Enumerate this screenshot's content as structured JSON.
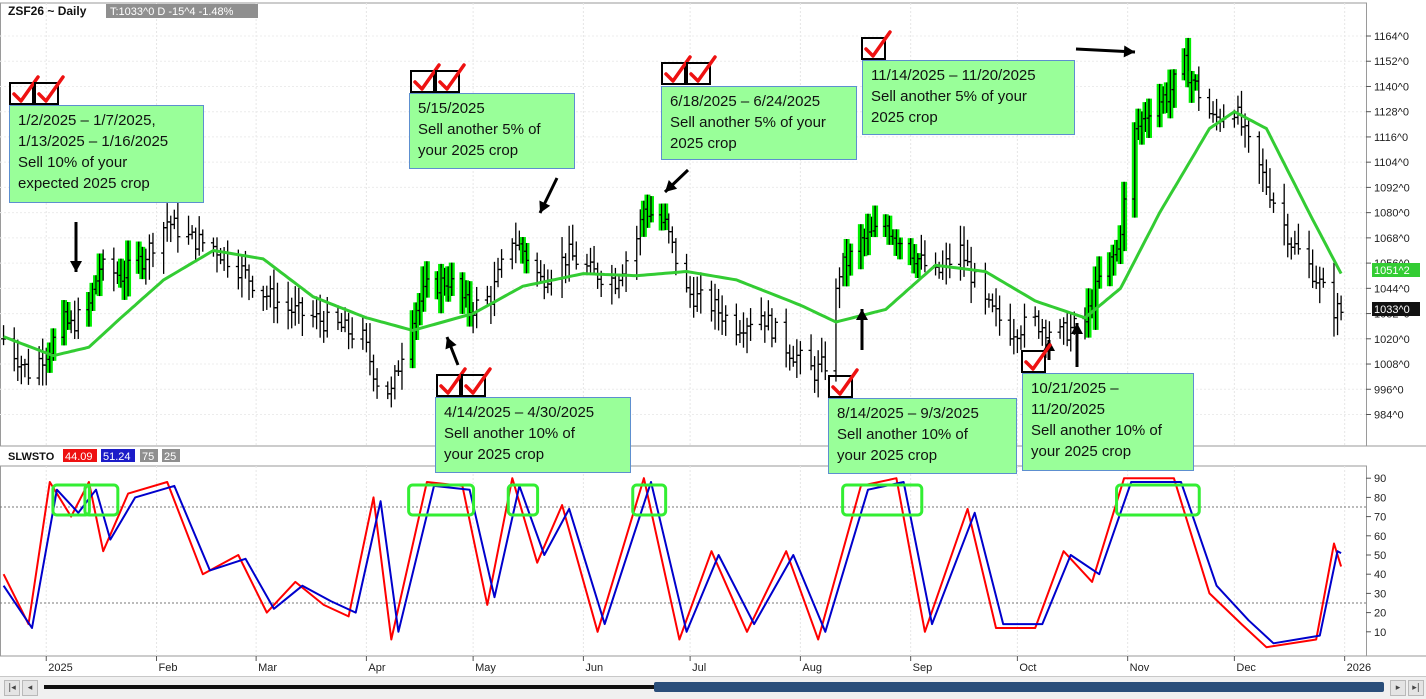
{
  "header": {
    "symbol": "ZSF26 ~ Daily",
    "stats": "T:1033^0 D  -15^4  -1.48%"
  },
  "indicator": {
    "name": "SLWSTO",
    "k_value": "44.09",
    "d_value": "51.24",
    "upper": "75",
    "lower": "25"
  },
  "price_axis_labels": [
    "1164^0",
    "1152^0",
    "1140^0",
    "1128^0",
    "1116^0",
    "1104^0",
    "1092^0",
    "1080^0",
    "1068^0",
    "1056^0",
    "1044^0",
    "1032^0",
    "1020^0",
    "1008^0",
    "996^0",
    "984^0"
  ],
  "osc_axis_labels": [
    "90",
    "80",
    "70",
    "60",
    "50",
    "40",
    "30",
    "20",
    "10"
  ],
  "last_price_tags": {
    "ma": "1051^2",
    "close": "1033^0"
  },
  "month_labels": [
    "2025",
    "Feb",
    "Mar",
    "Apr",
    "May",
    "Jun",
    "Jul",
    "Aug",
    "Sep",
    "Oct",
    "Nov",
    "Dec",
    "2026"
  ],
  "annotations": [
    {
      "lines": [
        "1/2/2025 –  1/7/2025,",
        "1/13/2025 – 1/16/2025",
        "Sell 10% of your",
        "expected 2025 crop"
      ],
      "checks": 2
    },
    {
      "lines": [
        "5/15/2025",
        "Sell another 5% of",
        "your 2025 crop"
      ],
      "checks": 2
    },
    {
      "lines": [
        "6/18/2025 – 6/24/2025",
        "Sell another 5% of your",
        "2025 crop"
      ],
      "checks": 2
    },
    {
      "lines": [
        "11/14/2025 – 11/20/2025",
        "Sell another 5% of your",
        "2025 crop"
      ],
      "checks": 1
    },
    {
      "lines": [
        "4/14/2025 – 4/30/2025",
        "Sell another 10% of",
        "your 2025 crop"
      ],
      "checks": 2
    },
    {
      "lines": [
        "8/14/2025 – 9/3/2025",
        "Sell another 10% of",
        "your 2025 crop"
      ],
      "checks": 1
    },
    {
      "lines": [
        "10/21/2025 –",
        "11/20/2025",
        "Sell another 10% of",
        "your 2025 crop"
      ],
      "checks": 1
    }
  ],
  "colors": {
    "moving_average": "#33cc33",
    "highlight": "#00ee00",
    "bars": "#000000",
    "stoch_k": "#ff0000",
    "stoch_d": "#0000cc",
    "callout_fill": "#99ff99",
    "check": "#ee1111"
  },
  "chart_data": [
    {
      "type": "line",
      "subtype": "daily price bars with moving average",
      "title": "ZSF26 ~ Daily",
      "x_range": [
        "2024-12-20",
        "2025-12-31"
      ],
      "ylim": [
        975,
        1172
      ],
      "y_ticks": [
        984,
        996,
        1008,
        1020,
        1032,
        1044,
        1056,
        1068,
        1080,
        1092,
        1104,
        1116,
        1128,
        1140,
        1152,
        1164
      ],
      "series": [
        {
          "name": "",
          "points": [
            [
              "2024-12-20",
              1020
            ],
            [
              "2024-12-27",
              1004
            ],
            [
              "2025-01-02",
              1016
            ],
            [
              "2025-01-06",
              1028
            ],
            [
              "2025-01-08",
              1026
            ],
            [
              "2025-01-13",
              1036
            ],
            [
              "2025-01-16",
              1054
            ],
            [
              "2025-01-22",
              1050
            ],
            [
              "2025-01-28",
              1058
            ],
            [
              "2025-02-04",
              1076
            ],
            [
              "2025-02-10",
              1068
            ],
            [
              "2025-02-17",
              1064
            ],
            [
              "2025-02-24",
              1054
            ],
            [
              "2025-03-03",
              1042
            ],
            [
              "2025-03-10",
              1034
            ],
            [
              "2025-03-17",
              1030
            ],
            [
              "2025-03-24",
              1026
            ],
            [
              "2025-03-31",
              1020
            ],
            [
              "2025-04-04",
              1000
            ],
            [
              "2025-04-08",
              994
            ],
            [
              "2025-04-11",
              1014
            ],
            [
              "2025-04-14",
              1032
            ],
            [
              "2025-04-18",
              1044
            ],
            [
              "2025-04-24",
              1048
            ],
            [
              "2025-04-30",
              1034
            ],
            [
              "2025-05-06",
              1040
            ],
            [
              "2025-05-12",
              1068
            ],
            [
              "2025-05-15",
              1062
            ],
            [
              "2025-05-20",
              1048
            ],
            [
              "2025-05-28",
              1060
            ],
            [
              "2025-06-03",
              1052
            ],
            [
              "2025-06-10",
              1048
            ],
            [
              "2025-06-16",
              1068
            ],
            [
              "2025-06-18",
              1082
            ],
            [
              "2025-06-24",
              1074
            ],
            [
              "2025-06-30",
              1042
            ],
            [
              "2025-07-07",
              1036
            ],
            [
              "2025-07-14",
              1026
            ],
            [
              "2025-07-21",
              1032
            ],
            [
              "2025-07-28",
              1016
            ],
            [
              "2025-08-05",
              1004
            ],
            [
              "2025-08-08",
              1008
            ],
            [
              "2025-08-12",
              1052
            ],
            [
              "2025-08-18",
              1066
            ],
            [
              "2025-08-25",
              1074
            ],
            [
              "2025-09-03",
              1058
            ],
            [
              "2025-09-08",
              1050
            ],
            [
              "2025-09-15",
              1062
            ],
            [
              "2025-09-22",
              1036
            ],
            [
              "2025-09-29",
              1024
            ],
            [
              "2025-10-06",
              1028
            ],
            [
              "2025-10-13",
              1022
            ],
            [
              "2025-10-20",
              1028
            ],
            [
              "2025-10-24",
              1048
            ],
            [
              "2025-10-29",
              1062
            ],
            [
              "2025-11-03",
              1118
            ],
            [
              "2025-11-07",
              1130
            ],
            [
              "2025-11-12",
              1136
            ],
            [
              "2025-11-17",
              1150
            ],
            [
              "2025-11-20",
              1140
            ],
            [
              "2025-11-25",
              1124
            ],
            [
              "2025-12-01",
              1130
            ],
            [
              "2025-12-05",
              1112
            ],
            [
              "2025-12-11",
              1090
            ],
            [
              "2025-12-17",
              1066
            ],
            [
              "2025-12-23",
              1052
            ],
            [
              "2025-12-29",
              1034
            ],
            [
              "2025-12-31",
              1033
            ]
          ]
        },
        {
          "name": "",
          "points": [
            [
              "2024-12-20",
              1021
            ],
            [
              "2025-01-03",
              1012
            ],
            [
              "2025-01-13",
              1016
            ],
            [
              "2025-01-22",
              1030
            ],
            [
              "2025-02-03",
              1048
            ],
            [
              "2025-02-17",
              1062
            ],
            [
              "2025-03-03",
              1058
            ],
            [
              "2025-03-17",
              1040
            ],
            [
              "2025-04-01",
              1030
            ],
            [
              "2025-04-14",
              1024
            ],
            [
              "2025-05-01",
              1032
            ],
            [
              "2025-05-15",
              1045
            ],
            [
              "2025-06-01",
              1051
            ],
            [
              "2025-06-16",
              1050
            ],
            [
              "2025-06-30",
              1052
            ],
            [
              "2025-07-14",
              1048
            ],
            [
              "2025-08-01",
              1036
            ],
            [
              "2025-08-11",
              1028
            ],
            [
              "2025-08-25",
              1034
            ],
            [
              "2025-09-08",
              1055
            ],
            [
              "2025-09-22",
              1052
            ],
            [
              "2025-10-06",
              1038
            ],
            [
              "2025-10-20",
              1030
            ],
            [
              "2025-10-30",
              1044
            ],
            [
              "2025-11-10",
              1080
            ],
            [
              "2025-11-24",
              1120
            ],
            [
              "2025-12-01",
              1128
            ],
            [
              "2025-12-10",
              1120
            ],
            [
              "2025-12-22",
              1080
            ],
            [
              "2025-12-31",
              1051
            ]
          ]
        }
      ]
    },
    {
      "type": "line",
      "title": "SLWSTO",
      "ylim": [
        0,
        100
      ],
      "y_ticks": [
        10,
        20,
        30,
        40,
        50,
        60,
        70,
        80,
        90
      ],
      "reference_lines": [
        25,
        75
      ],
      "series": [
        {
          "name": "",
          "points": [
            [
              "2024-12-20",
              40
            ],
            [
              "2024-12-27",
              14
            ],
            [
              "2025-01-02",
              88
            ],
            [
              "2025-01-08",
              70
            ],
            [
              "2025-01-13",
              88
            ],
            [
              "2025-01-17",
              52
            ],
            [
              "2025-01-24",
              82
            ],
            [
              "2025-02-04",
              88
            ],
            [
              "2025-02-14",
              40
            ],
            [
              "2025-02-24",
              50
            ],
            [
              "2025-03-04",
              20
            ],
            [
              "2025-03-12",
              36
            ],
            [
              "2025-03-20",
              24
            ],
            [
              "2025-03-27",
              18
            ],
            [
              "2025-04-03",
              80
            ],
            [
              "2025-04-08",
              6
            ],
            [
              "2025-04-18",
              88
            ],
            [
              "2025-04-28",
              86
            ],
            [
              "2025-05-05",
              24
            ],
            [
              "2025-05-12",
              90
            ],
            [
              "2025-05-19",
              46
            ],
            [
              "2025-05-26",
              76
            ],
            [
              "2025-06-05",
              10
            ],
            [
              "2025-06-18",
              90
            ],
            [
              "2025-06-28",
              6
            ],
            [
              "2025-07-07",
              52
            ],
            [
              "2025-07-17",
              10
            ],
            [
              "2025-07-28",
              52
            ],
            [
              "2025-08-06",
              6
            ],
            [
              "2025-08-18",
              86
            ],
            [
              "2025-08-28",
              90
            ],
            [
              "2025-09-05",
              10
            ],
            [
              "2025-09-17",
              74
            ],
            [
              "2025-09-25",
              12
            ],
            [
              "2025-10-06",
              12
            ],
            [
              "2025-10-14",
              52
            ],
            [
              "2025-10-22",
              36
            ],
            [
              "2025-10-31",
              90
            ],
            [
              "2025-11-14",
              90
            ],
            [
              "2025-11-24",
              30
            ],
            [
              "2025-12-03",
              14
            ],
            [
              "2025-12-10",
              2
            ],
            [
              "2025-12-24",
              6
            ],
            [
              "2025-12-29",
              56
            ],
            [
              "2025-12-31",
              44
            ]
          ]
        },
        {
          "name": "",
          "points": [
            [
              "2024-12-20",
              34
            ],
            [
              "2024-12-28",
              12
            ],
            [
              "2025-01-04",
              84
            ],
            [
              "2025-01-10",
              72
            ],
            [
              "2025-01-15",
              84
            ],
            [
              "2025-01-19",
              58
            ],
            [
              "2025-01-26",
              80
            ],
            [
              "2025-02-06",
              86
            ],
            [
              "2025-02-16",
              42
            ],
            [
              "2025-02-26",
              48
            ],
            [
              "2025-03-06",
              22
            ],
            [
              "2025-03-14",
              34
            ],
            [
              "2025-03-22",
              26
            ],
            [
              "2025-03-29",
              20
            ],
            [
              "2025-04-05",
              78
            ],
            [
              "2025-04-10",
              10
            ],
            [
              "2025-04-20",
              86
            ],
            [
              "2025-04-30",
              84
            ],
            [
              "2025-05-07",
              28
            ],
            [
              "2025-05-14",
              86
            ],
            [
              "2025-05-21",
              50
            ],
            [
              "2025-05-28",
              74
            ],
            [
              "2025-06-07",
              14
            ],
            [
              "2025-06-20",
              88
            ],
            [
              "2025-06-30",
              10
            ],
            [
              "2025-07-09",
              50
            ],
            [
              "2025-07-19",
              14
            ],
            [
              "2025-07-30",
              50
            ],
            [
              "2025-08-08",
              10
            ],
            [
              "2025-08-20",
              84
            ],
            [
              "2025-08-30",
              88
            ],
            [
              "2025-09-07",
              14
            ],
            [
              "2025-09-19",
              72
            ],
            [
              "2025-09-27",
              14
            ],
            [
              "2025-10-08",
              14
            ],
            [
              "2025-10-16",
              50
            ],
            [
              "2025-10-24",
              40
            ],
            [
              "2025-11-02",
              88
            ],
            [
              "2025-11-16",
              88
            ],
            [
              "2025-11-26",
              34
            ],
            [
              "2025-12-05",
              16
            ],
            [
              "2025-12-12",
              4
            ],
            [
              "2025-12-25",
              8
            ],
            [
              "2025-12-30",
              52
            ],
            [
              "2025-12-31",
              51
            ]
          ]
        }
      ]
    }
  ]
}
